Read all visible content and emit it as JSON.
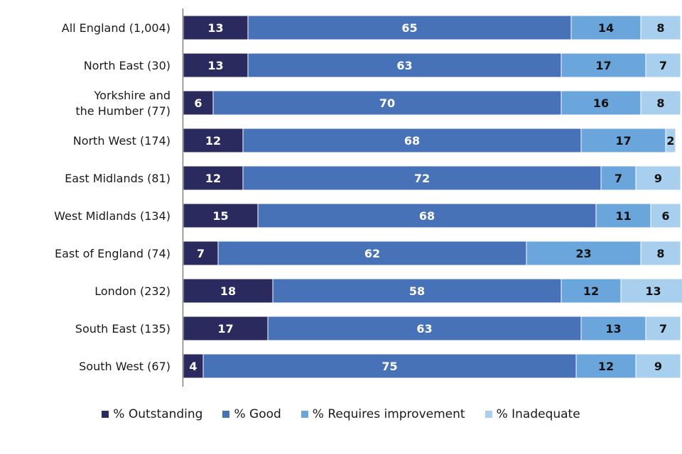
{
  "chart_data": {
    "type": "bar",
    "orientation": "horizontal",
    "stacked": true,
    "percent": true,
    "categories": [
      "All England (1,004)",
      "North East (30)",
      "Yorkshire and the Humber (77)",
      "North West (174)",
      "East Midlands (81)",
      "West Midlands (134)",
      "East of England (74)",
      "London (232)",
      "South East (135)",
      "South West (67)"
    ],
    "category_lines": [
      [
        "All England (1,004)"
      ],
      [
        "North East (30)"
      ],
      [
        "Yorkshire and",
        "the Humber (77)"
      ],
      [
        "North West (174)"
      ],
      [
        "East Midlands (81)"
      ],
      [
        "West Midlands (134)"
      ],
      [
        "East of England (74)"
      ],
      [
        "London (232)"
      ],
      [
        "South East (135)"
      ],
      [
        "South West (67)"
      ]
    ],
    "series": [
      {
        "name": "% Outstanding",
        "color": "#2a2a5e",
        "label_color": "#ffffff",
        "values": [
          13,
          13,
          6,
          12,
          12,
          15,
          7,
          18,
          17,
          4
        ]
      },
      {
        "name": "% Good",
        "color": "#4872b8",
        "label_color": "#ffffff",
        "values": [
          65,
          63,
          70,
          68,
          72,
          68,
          62,
          58,
          63,
          75
        ]
      },
      {
        "name": "% Requires improvement",
        "color": "#6aa6db",
        "label_color": "#111111",
        "values": [
          14,
          17,
          16,
          17,
          7,
          11,
          23,
          12,
          13,
          12
        ]
      },
      {
        "name": "% Inadequate",
        "color": "#a8cfee",
        "label_color": "#111111",
        "values": [
          8,
          7,
          8,
          2,
          9,
          6,
          8,
          13,
          7,
          9
        ]
      }
    ],
    "xlim": [
      0,
      100
    ],
    "grid": false,
    "legend_position": "bottom"
  }
}
